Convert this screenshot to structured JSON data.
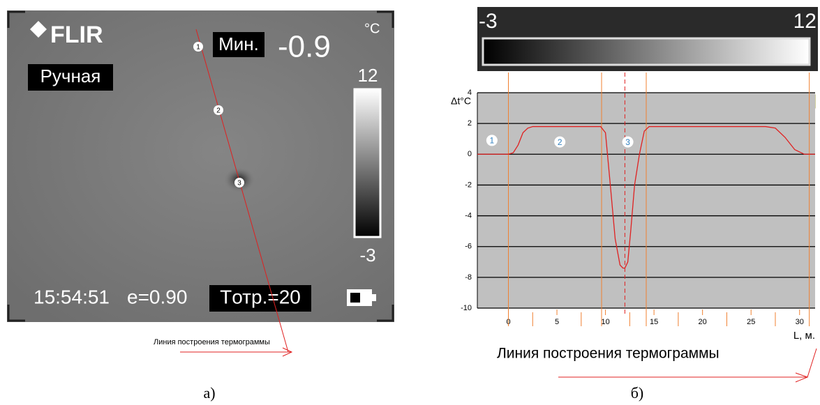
{
  "thermal_image": {
    "logo": "FLIR",
    "min_label": "Мин.",
    "min_value": "-0.9",
    "unit": "°C",
    "mode": "Ручная",
    "scale_max": "12",
    "scale_min": "-3",
    "time": "15:54:51",
    "emissivity": "e=0.90",
    "reflected": "Tотр.=20",
    "points": [
      "1",
      "2",
      "3"
    ],
    "line_caption": "Линия построения термограммы",
    "panel_label": "а)"
  },
  "chart_data": {
    "type": "line",
    "y_label": "Δt°C",
    "x_label": "L, м.",
    "scale_bar": {
      "min_label": "-3",
      "max_label": "12"
    },
    "xlim": [
      -3.2,
      31.6
    ],
    "ylim": [
      -10,
      4
    ],
    "xticks": [
      0,
      5,
      10,
      15,
      20,
      25,
      30
    ],
    "yticks": [
      4,
      2,
      0,
      -2,
      -4,
      -6,
      -8,
      -10
    ],
    "x_minor_ticks": [
      2.5,
      7.5,
      12.5,
      17.5,
      22.5,
      27.5
    ],
    "grid": true,
    "markers": [
      0,
      9.6,
      14.2,
      31
    ],
    "marker_color": "#f08030",
    "center_marker": 12,
    "series": [
      {
        "color": "#e02020",
        "x": [
          -3.2,
          0,
          0.5,
          1,
          1.5,
          2,
          2.5,
          9.5,
          10,
          10.5,
          11,
          11.5,
          11.8,
          12,
          12.3,
          12.6,
          13,
          13.5,
          14,
          14.5,
          26.5,
          27.5,
          28.5,
          29.5,
          30.5,
          31.6
        ],
        "values": [
          0,
          0,
          0.1,
          0.6,
          1.4,
          1.7,
          1.8,
          1.8,
          1.4,
          -2,
          -5.5,
          -7.2,
          -7.4,
          -7.4,
          -7,
          -5,
          -2,
          0,
          1.5,
          1.8,
          1.8,
          1.7,
          1.1,
          0.3,
          0,
          0
        ]
      }
    ],
    "annotations": [
      {
        "text": "1",
        "x": -1.7,
        "y": 0.9
      },
      {
        "text": "2",
        "x": 5.3,
        "y": 0.8
      },
      {
        "text": "3",
        "x": 12.3,
        "y": 0.8
      }
    ],
    "caption": "Линия построения термограммы",
    "panel_label": "б)"
  }
}
